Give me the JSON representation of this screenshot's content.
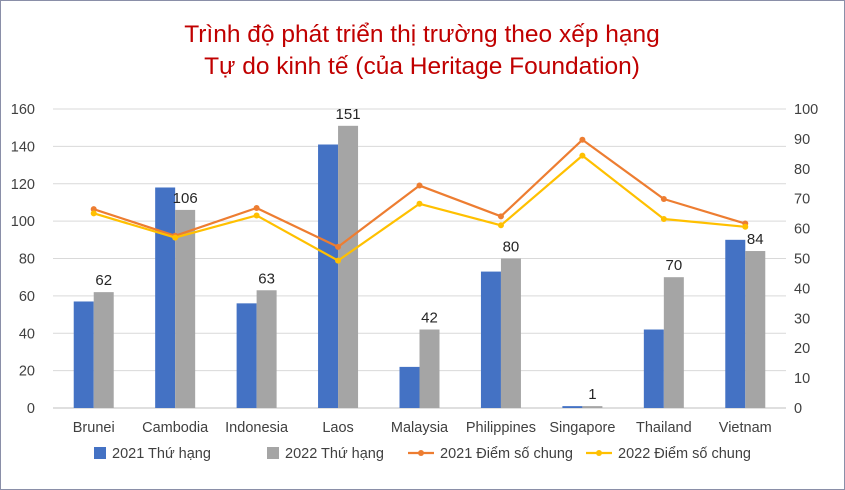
{
  "chart_data": {
    "type": "bar",
    "title_lines": [
      "Trình độ phát triển thị trường theo xếp hạng",
      "Tự do kinh tế (của Heritage Foundation)"
    ],
    "categories": [
      "Brunei",
      "Cambodia",
      "Indonesia",
      "Laos",
      "Malaysia",
      "Philippines",
      "Singapore",
      "Thailand",
      "Vietnam"
    ],
    "bar_series": [
      {
        "name": "2021 Thứ hạng",
        "values": [
          57,
          118,
          56,
          141,
          22,
          73,
          1,
          42,
          90
        ],
        "color": "#4472c4",
        "axis": "left",
        "show_labels": false
      },
      {
        "name": "2022 Thứ hạng",
        "values": [
          62,
          106,
          63,
          151,
          42,
          80,
          1,
          70,
          84
        ],
        "color": "#a5a5a5",
        "axis": "left",
        "show_labels": true
      }
    ],
    "line_series": [
      {
        "name": "2021 Điểm số chung",
        "values": [
          66.5,
          57.6,
          66.9,
          53.9,
          74.4,
          64.1,
          89.7,
          69.9,
          61.7
        ],
        "color": "#ed7d31",
        "axis": "right"
      },
      {
        "name": "2022 Điểm số chung",
        "values": [
          65.1,
          57.0,
          64.4,
          49.3,
          68.3,
          61.1,
          84.4,
          63.2,
          60.6
        ],
        "color": "#ffc000",
        "axis": "right"
      }
    ],
    "y_left": {
      "min": 0,
      "max": 160,
      "step": 20,
      "ticks": [
        "0",
        "20",
        "40",
        "60",
        "80",
        "100",
        "120",
        "140",
        "160"
      ]
    },
    "y_right": {
      "min": 0,
      "max": 100,
      "step": 10,
      "ticks": [
        "0",
        "10",
        "20",
        "30",
        "40",
        "50",
        "60",
        "70",
        "80",
        "90",
        "100"
      ]
    },
    "grid": true,
    "legend_position": "bottom",
    "legend_order": [
      "2021 Thứ hạng",
      "2022 Thứ hạng",
      "2021 Điểm số chung",
      "2022 Điểm số chung"
    ]
  }
}
